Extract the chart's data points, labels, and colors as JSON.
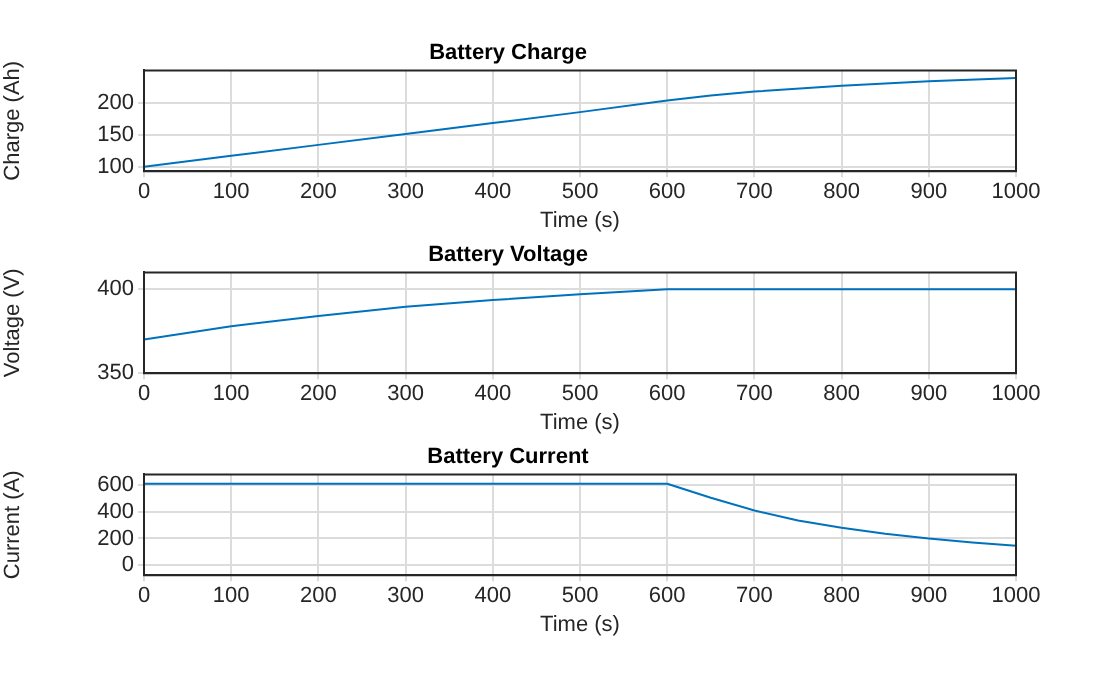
{
  "chart_data": [
    {
      "type": "line",
      "title": "Battery Charge",
      "xlabel": "Time (s)",
      "ylabel": "Charge (Ah)",
      "x": [
        0,
        100,
        200,
        300,
        400,
        500,
        600,
        650,
        700,
        800,
        900,
        1000
      ],
      "series": [
        {
          "color": "#0072bd",
          "values": [
            100,
            117,
            134,
            151,
            168,
            185,
            203,
            211,
            217,
            226,
            233,
            238
          ]
        }
      ],
      "xlim": [
        0,
        1000
      ],
      "xticks": [
        0,
        100,
        200,
        300,
        400,
        500,
        600,
        700,
        800,
        900,
        1000
      ],
      "ylim": [
        93,
        250
      ],
      "yticks": [
        100,
        150,
        200
      ],
      "grid": true
    },
    {
      "type": "line",
      "title": "Battery Voltage",
      "xlabel": "Time (s)",
      "ylabel": "Voltage (V)",
      "x": [
        0,
        100,
        200,
        300,
        400,
        500,
        600,
        700,
        800,
        900,
        1000
      ],
      "series": [
        {
          "color": "#0072bd",
          "values": [
            370,
            378,
            384,
            389.5,
            393.5,
            397,
            400,
            400,
            400,
            400,
            400
          ]
        }
      ],
      "xlim": [
        0,
        1000
      ],
      "xticks": [
        0,
        100,
        200,
        300,
        400,
        500,
        600,
        700,
        800,
        900,
        1000
      ],
      "ylim": [
        350,
        410
      ],
      "yticks": [
        350,
        400
      ],
      "grid": true
    },
    {
      "type": "line",
      "title": "Battery Current",
      "xlabel": "Time (s)",
      "ylabel": "Current (A)",
      "x": [
        0,
        100,
        200,
        300,
        400,
        500,
        600,
        650,
        700,
        750,
        800,
        850,
        900,
        950,
        1000
      ],
      "series": [
        {
          "color": "#0072bd",
          "values": [
            610,
            610,
            610,
            610,
            610,
            610,
            610,
            505,
            410,
            335,
            280,
            235,
            200,
            170,
            145
          ]
        }
      ],
      "xlim": [
        0,
        1000
      ],
      "xticks": [
        0,
        100,
        200,
        300,
        400,
        500,
        600,
        700,
        800,
        900,
        1000
      ],
      "ylim": [
        -75,
        680
      ],
      "yticks": [
        0,
        200,
        400,
        600
      ],
      "grid": true
    }
  ]
}
